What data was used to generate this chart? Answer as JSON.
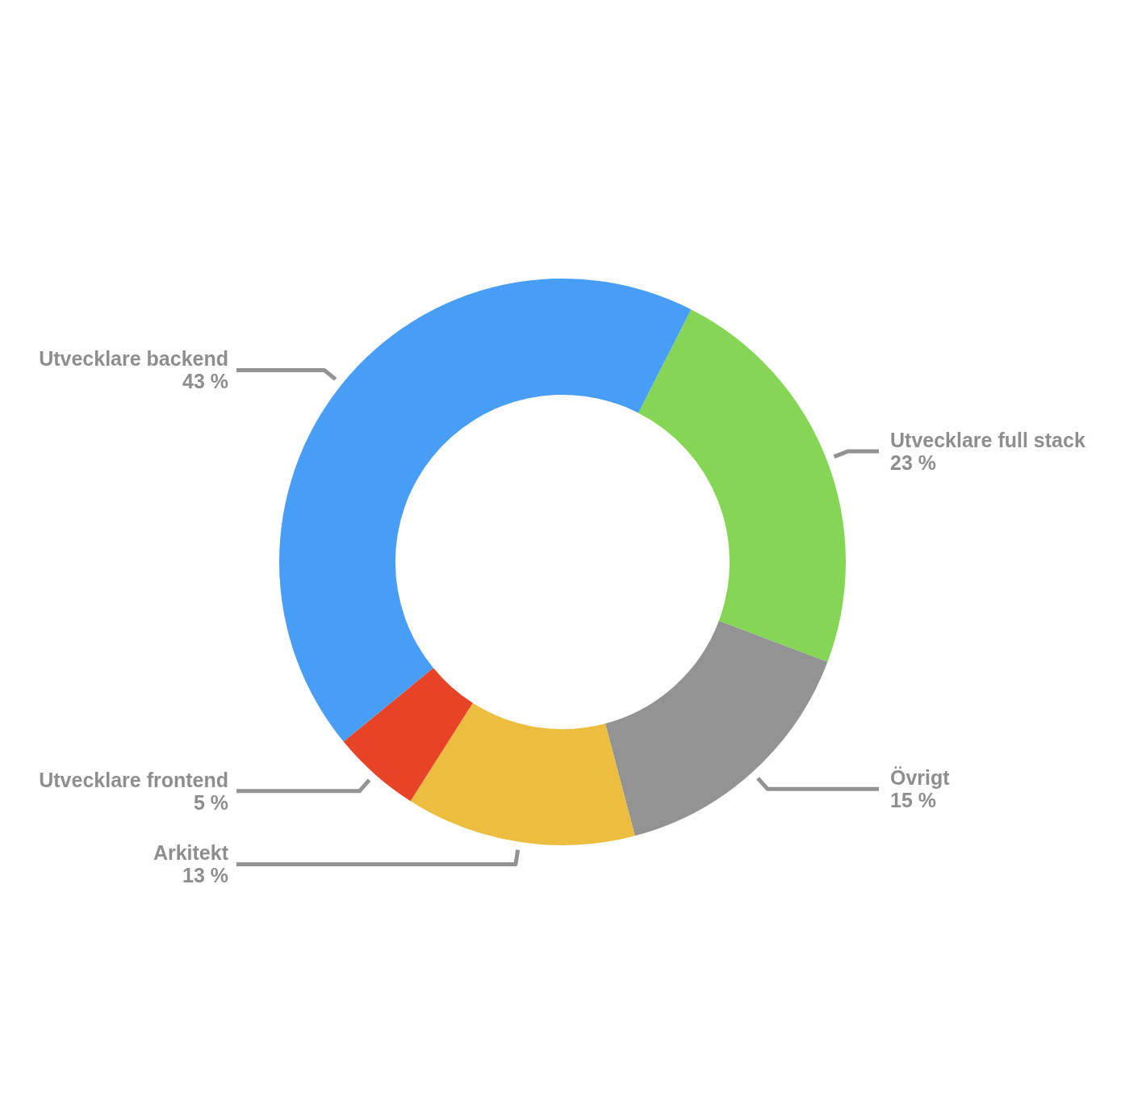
{
  "chart_data": {
    "type": "donut",
    "categories": [
      "Utvecklare full stack",
      "Övrigt",
      "Arkitekt",
      "Utvecklare frontend",
      "Utvecklare backend"
    ],
    "values": [
      23,
      15,
      13,
      5,
      43
    ],
    "value_labels": [
      "23 %",
      "15 %",
      "13 %",
      "5 %",
      "43 %"
    ],
    "colors": [
      "#84d654",
      "#939393",
      "#edbd40",
      "#e74427",
      "#489ef6"
    ],
    "legend": false
  }
}
